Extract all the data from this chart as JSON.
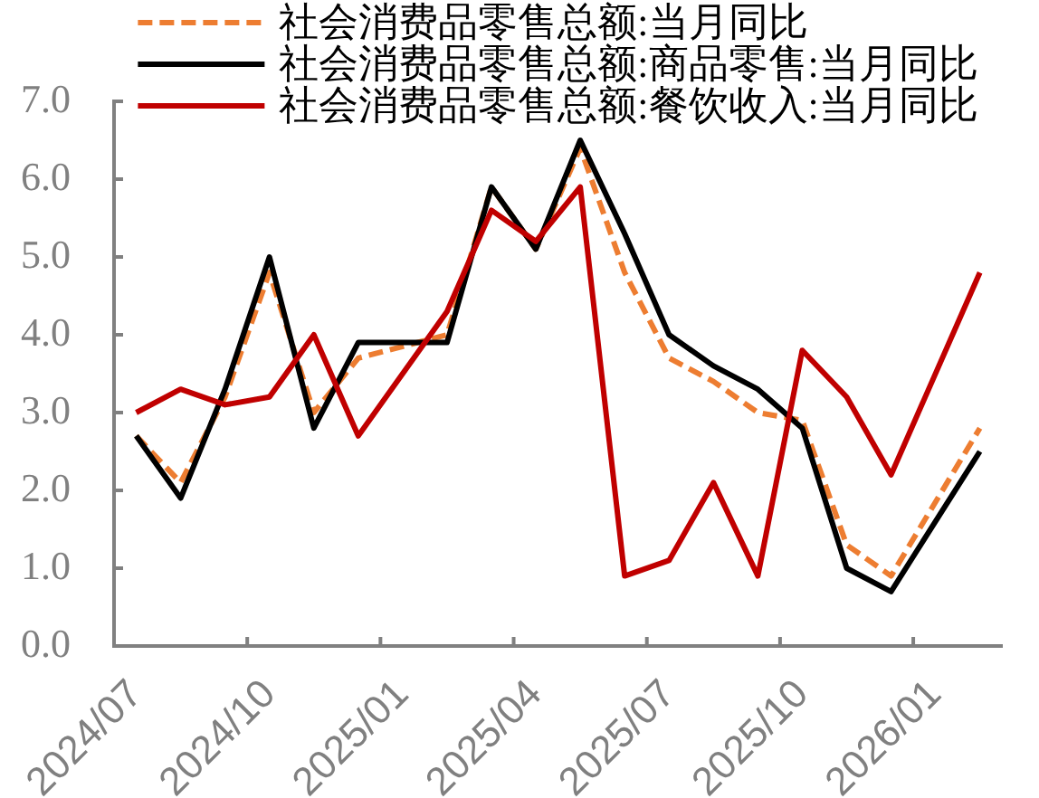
{
  "chart_data": {
    "type": "line",
    "categories": [
      "2024/07",
      null,
      null,
      "2024/10",
      null,
      null,
      "2025/01",
      null,
      null,
      "2025/04",
      null,
      null,
      "2025/07",
      null,
      null,
      "2025/10",
      null,
      null,
      "2026/01",
      null
    ],
    "series": [
      {
        "name": "社会消费品零售总额:当月同比",
        "color": "#ed7d31",
        "line_style": "dashed",
        "values": [
          2.7,
          2.1,
          3.2,
          4.8,
          3.0,
          3.7,
          null,
          4.0,
          5.9,
          5.1,
          6.4,
          4.8,
          3.7,
          3.4,
          3.0,
          2.9,
          1.3,
          0.9,
          null,
          2.8
        ]
      },
      {
        "name": "社会消费品零售总额:商品零售:当月同比",
        "color": "#000000",
        "values": [
          2.7,
          1.9,
          3.3,
          5.0,
          2.8,
          3.9,
          null,
          3.9,
          5.9,
          5.1,
          6.5,
          5.3,
          4.0,
          3.6,
          3.3,
          2.8,
          1.0,
          0.7,
          null,
          2.5
        ]
      },
      {
        "name": "社会消费品零售总额:餐饮收入:当月同比",
        "color": "#c00000",
        "values": [
          3.0,
          3.3,
          3.1,
          3.2,
          4.0,
          2.7,
          null,
          4.3,
          5.6,
          5.2,
          5.9,
          0.9,
          1.1,
          2.1,
          0.9,
          3.8,
          3.2,
          2.2,
          null,
          4.8
        ]
      }
    ],
    "ylim": [
      0,
      7
    ],
    "yticks": [
      {
        "value": 0,
        "label": "0.0"
      },
      {
        "value": 1,
        "label": "1.0"
      },
      {
        "value": 2,
        "label": "2.0"
      },
      {
        "value": 3,
        "label": "3.0"
      },
      {
        "value": 4,
        "label": "4.0"
      },
      {
        "value": 5,
        "label": "5.0"
      },
      {
        "value": 6,
        "label": "6.0"
      },
      {
        "value": 7,
        "label": "7.0"
      }
    ],
    "legend": "top"
  }
}
